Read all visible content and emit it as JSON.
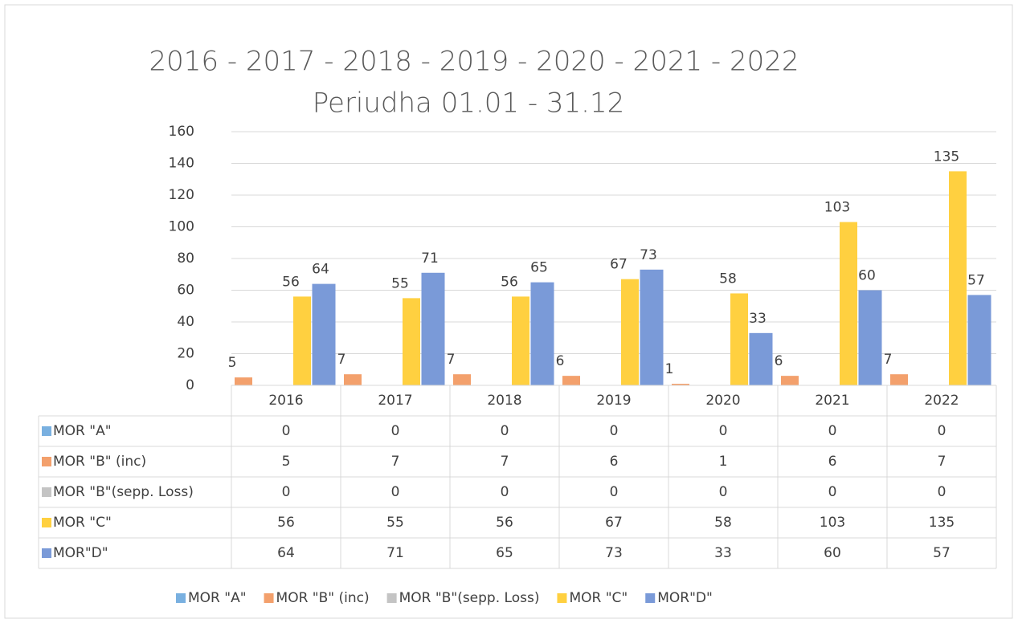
{
  "chart_data": {
    "type": "bar",
    "title": "2016 - 2017 - 2018 - 2019 - 2020 - 2021 - 2022",
    "subtitle": "Periudha 01.01 - 31.12",
    "categories": [
      "2016",
      "2017",
      "2018",
      "2019",
      "2020",
      "2021",
      "2022"
    ],
    "series": [
      {
        "name": "MOR \"A\"",
        "color": "#79b0e0",
        "values": [
          0,
          0,
          0,
          0,
          0,
          0,
          0
        ],
        "data_labels": false
      },
      {
        "name": "MOR \"B\" (inc)",
        "color": "#f3a06c",
        "values": [
          5,
          7,
          7,
          6,
          1,
          6,
          7
        ],
        "data_labels": true
      },
      {
        "name": "MOR \"B\"(sepp. Loss)",
        "color": "#c4c4c4",
        "values": [
          0,
          0,
          0,
          0,
          0,
          0,
          0
        ],
        "data_labels": false
      },
      {
        "name": "MOR \"C\"",
        "color": "#ffd040",
        "values": [
          56,
          55,
          56,
          67,
          58,
          103,
          135
        ],
        "data_labels": true
      },
      {
        "name": "MOR\"D\"",
        "color": "#7a9ad8",
        "values": [
          64,
          71,
          65,
          73,
          33,
          60,
          57
        ],
        "data_labels": true
      }
    ],
    "ylim": [
      0,
      160
    ],
    "yticks": [
      0,
      20,
      40,
      60,
      80,
      100,
      120,
      140,
      160
    ],
    "grid": true,
    "data_table": true,
    "legend": "bottom"
  }
}
